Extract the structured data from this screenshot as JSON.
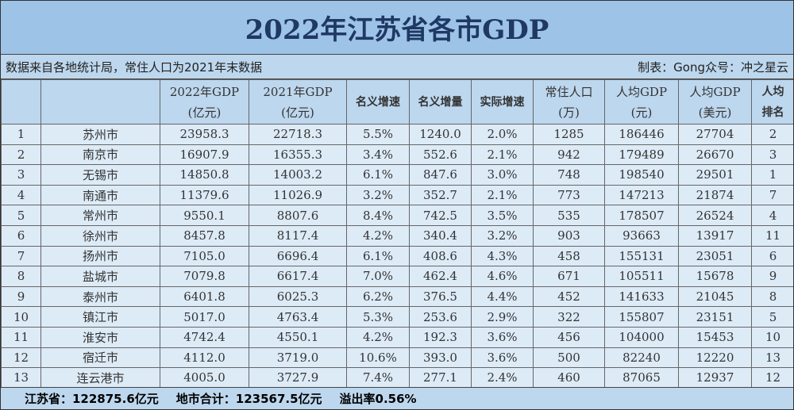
{
  "title": "2022年江苏省各市GDP",
  "subtitle_left": "数据来自各地统计局，常住人口为2021年末数据",
  "subtitle_right": "制表：Gong众号：冲之星云",
  "headers": [
    {
      "l1": "",
      "l2": ""
    },
    {
      "l1": "",
      "l2": ""
    },
    {
      "l1": "2022年GDP",
      "l2": "(亿元)"
    },
    {
      "l1": "2021年GDP",
      "l2": "(亿元)"
    },
    {
      "l1": "名义增速",
      "l2": ""
    },
    {
      "l1": "名义增量",
      "l2": ""
    },
    {
      "l1": "实际增速",
      "l2": ""
    },
    {
      "l1": "常住人口",
      "l2": "(万)"
    },
    {
      "l1": "人均GDP",
      "l2": "(元)"
    },
    {
      "l1": "人均GDP",
      "l2": "(美元)"
    },
    {
      "l1": "人均",
      "l2": "排名"
    }
  ],
  "rows": [
    [
      "1",
      "苏州市",
      "23958.3",
      "22718.3",
      "5.5%",
      "1240.0",
      "2.0%",
      "1285",
      "186446",
      "27704",
      "2"
    ],
    [
      "2",
      "南京市",
      "16907.9",
      "16355.3",
      "3.4%",
      "552.6",
      "2.1%",
      "942",
      "179489",
      "26670",
      "3"
    ],
    [
      "3",
      "无锡市",
      "14850.8",
      "14003.2",
      "6.1%",
      "847.6",
      "3.0%",
      "748",
      "198540",
      "29501",
      "1"
    ],
    [
      "4",
      "南通市",
      "11379.6",
      "11026.9",
      "3.2%",
      "352.7",
      "2.1%",
      "773",
      "147213",
      "21874",
      "7"
    ],
    [
      "5",
      "常州市",
      "9550.1",
      "8807.6",
      "8.4%",
      "742.5",
      "3.5%",
      "535",
      "178507",
      "26524",
      "4"
    ],
    [
      "6",
      "徐州市",
      "8457.8",
      "8117.4",
      "4.2%",
      "340.4",
      "3.2%",
      "903",
      "93663",
      "13917",
      "11"
    ],
    [
      "7",
      "扬州市",
      "7105.0",
      "6696.4",
      "6.1%",
      "408.6",
      "4.3%",
      "458",
      "155131",
      "23051",
      "6"
    ],
    [
      "8",
      "盐城市",
      "7079.8",
      "6617.4",
      "7.0%",
      "462.4",
      "4.6%",
      "671",
      "105511",
      "15678",
      "9"
    ],
    [
      "9",
      "泰州市",
      "6401.8",
      "6025.3",
      "6.2%",
      "376.5",
      "4.4%",
      "452",
      "141633",
      "21045",
      "8"
    ],
    [
      "10",
      "镇江市",
      "5017.0",
      "4763.4",
      "5.3%",
      "253.6",
      "2.9%",
      "322",
      "155807",
      "23151",
      "5"
    ],
    [
      "11",
      "淮安市",
      "4742.4",
      "4550.1",
      "4.2%",
      "192.3",
      "3.6%",
      "456",
      "104000",
      "15453",
      "10"
    ],
    [
      "12",
      "宿迁市",
      "4112.0",
      "3719.0",
      "10.6%",
      "393.0",
      "3.6%",
      "500",
      "82240",
      "12220",
      "13"
    ],
    [
      "13",
      "连云港市",
      "4005.0",
      "3727.9",
      "7.4%",
      "277.1",
      "2.4%",
      "460",
      "87065",
      "12937",
      "12"
    ]
  ],
  "footer": {
    "province": "江苏省：122875.6亿元",
    "sum": "地市合计：123567.5亿元",
    "overflow": "溢出率0.56%"
  }
}
